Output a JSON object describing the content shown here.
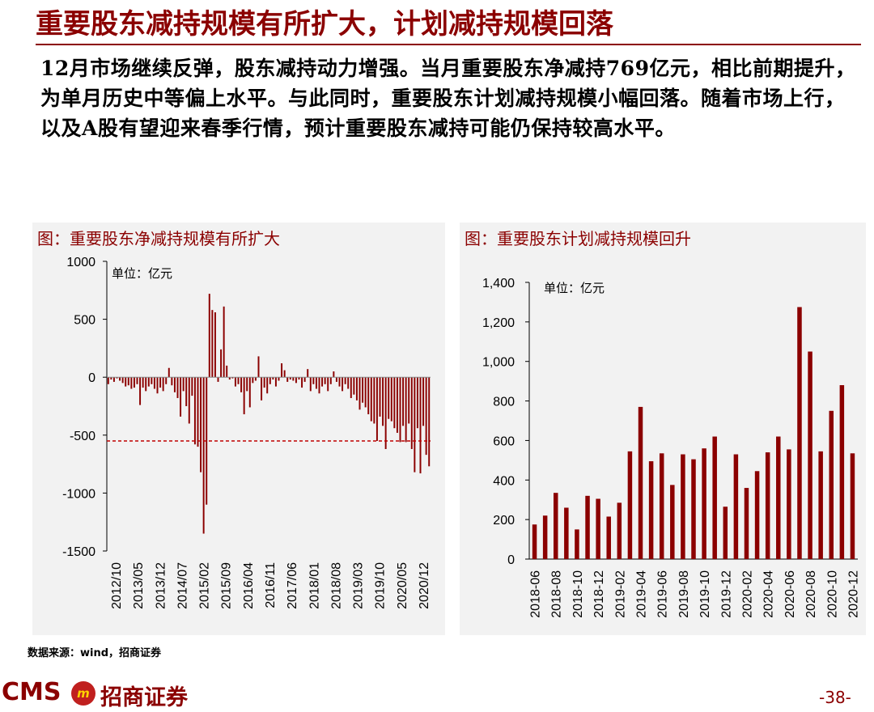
{
  "header": {
    "title": "重要股东减持规模有所扩大，计划减持规模回落",
    "paragraph": "12月市场继续反弹，股东减持动力增强。当月重要股东净减持769亿元，相比前期提升，为单月历史中等偏上水平。与此同时，重要股东计划减持规模小幅回落。随着市场上行，以及A股有望迎来春季行情，预计重要股东减持可能仍保持较高水平。"
  },
  "colors": {
    "accent": "#8b0000",
    "bar": "#8b0000",
    "panel_bg": "#f2f2f2"
  },
  "chart_data": [
    {
      "type": "bar",
      "title": "图：重要股东净减持规模有所扩大",
      "unit": "单位：亿元",
      "ylim": [
        -1500,
        1000
      ],
      "yticks": [
        1000,
        500,
        0,
        -500,
        -1000,
        -1500
      ],
      "ytick_labels": [
        "1000",
        "500",
        "0",
        "-500",
        "-1000",
        "-1500"
      ],
      "xtick_labels": [
        "2012/10",
        "2013/05",
        "2013/12",
        "2014/07",
        "2015/02",
        "2015/09",
        "2016/04",
        "2016/11",
        "2017/06",
        "2018/01",
        "2018/08",
        "2019/03",
        "2019/10",
        "2020/05",
        "2020/12"
      ],
      "x_start": "2012/10",
      "x_end": "2020/12",
      "reference_line": -550,
      "values": [
        -60,
        -20,
        -40,
        -10,
        -30,
        -50,
        -80,
        -70,
        -100,
        -90,
        -60,
        -240,
        -90,
        -120,
        -80,
        -60,
        -100,
        -140,
        -90,
        -120,
        -60,
        80,
        -70,
        -130,
        -180,
        -340,
        -120,
        -250,
        -400,
        -160,
        -580,
        -600,
        -820,
        -1350,
        -1100,
        720,
        580,
        560,
        -40,
        240,
        610,
        100,
        -20,
        -10,
        -80,
        -60,
        -130,
        -320,
        -120,
        -260,
        -50,
        -30,
        180,
        -200,
        -90,
        -140,
        -60,
        -20,
        -80,
        -30,
        120,
        60,
        -40,
        -20,
        -30,
        -50,
        -20,
        -90,
        -40,
        70,
        -120,
        -60,
        -100,
        -140,
        -80,
        -60,
        -120,
        -60,
        50,
        -40,
        -80,
        -120,
        -60,
        -100,
        -180,
        -150,
        -200,
        -280,
        -220,
        -260,
        -320,
        -380,
        -400,
        -550,
        -340,
        -420,
        -620,
        -360,
        -380,
        -440,
        -480,
        -560,
        -420,
        -560,
        -400,
        -620,
        -820,
        -440,
        -830,
        -420,
        -670,
        -769
      ]
    },
    {
      "type": "bar",
      "title": "图：重要股东计划减持规模回升",
      "unit": "单位：亿元",
      "ylim": [
        0,
        1400
      ],
      "yticks": [
        1400,
        1200,
        1000,
        800,
        600,
        400,
        200,
        0
      ],
      "ytick_labels": [
        "1,400",
        "1,200",
        "1,000",
        "800",
        "600",
        "400",
        "200",
        "0"
      ],
      "categories": [
        "2018-06",
        "2018-07",
        "2018-08",
        "2018-09",
        "2018-10",
        "2018-11",
        "2018-12",
        "2019-01",
        "2019-02",
        "2019-03",
        "2019-04",
        "2019-05",
        "2019-06",
        "2019-07",
        "2019-08",
        "2019-09",
        "2019-10",
        "2019-11",
        "2019-12",
        "2020-01",
        "2020-02",
        "2020-03",
        "2020-04",
        "2020-05",
        "2020-06",
        "2020-07",
        "2020-08",
        "2020-09",
        "2020-10",
        "2020-11",
        "2020-12"
      ],
      "xtick_labels": [
        "2018-06",
        "2018-08",
        "2018-10",
        "2018-12",
        "2019-02",
        "2019-04",
        "2019-06",
        "2019-08",
        "2019-10",
        "2019-12",
        "2020-02",
        "2020-04",
        "2020-06",
        "2020-08",
        "2020-10",
        "2020-12"
      ],
      "values": [
        175,
        220,
        335,
        260,
        150,
        320,
        305,
        215,
        285,
        545,
        770,
        495,
        535,
        375,
        530,
        505,
        560,
        620,
        265,
        530,
        360,
        445,
        540,
        620,
        555,
        1275,
        1050,
        545,
        750,
        880,
        535
      ]
    }
  ],
  "footer": {
    "source": "数据来源：wind，招商证券",
    "logo_latin": "CMS",
    "logo_badge": "m",
    "logo_cn": "招商证券",
    "page": "-38-"
  }
}
